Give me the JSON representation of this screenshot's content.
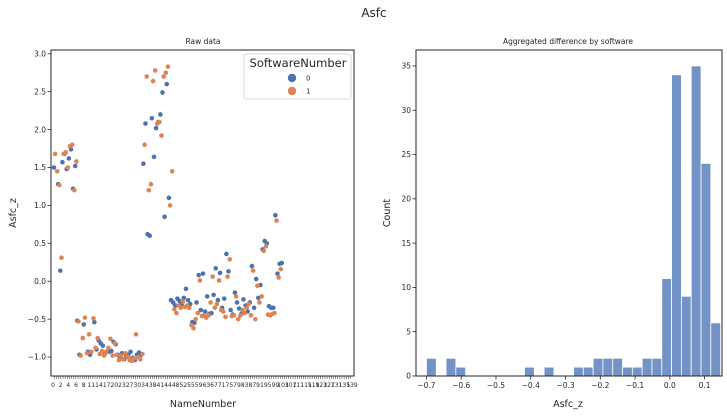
{
  "figure": {
    "suptitle": "Asfc"
  },
  "colors": {
    "software0": "#4c72b0",
    "software1": "#dd8452",
    "hist": "#7393c6",
    "axis": "#262626"
  },
  "chart_data": [
    {
      "type": "scatter",
      "title": "Raw data",
      "xlabel": "NameNumber",
      "ylabel": "Asfc_z",
      "x_categorical": true,
      "n_categories": 140,
      "ylim": [
        -1.25,
        3.05
      ],
      "yticks": [
        -1.0,
        -0.5,
        0.0,
        0.5,
        1.0,
        1.5,
        2.0,
        2.5,
        3.0
      ],
      "ytick_labels": [
        "−1.0",
        "−0.5",
        "0.0",
        "0.5",
        "1.0",
        "1.5",
        "2.0",
        "2.5",
        "3.0"
      ],
      "xtick_labels_visible": [
        "0",
        "2",
        "4",
        "6",
        "8",
        "11",
        "14",
        "17",
        "20",
        "23",
        "27",
        "30",
        "34",
        "38",
        "41",
        "44",
        "48",
        "52",
        "55",
        "59",
        "63",
        "67",
        "71",
        "75",
        "79",
        "83",
        "87",
        "91",
        "95",
        "99",
        "103",
        "107",
        "111",
        "115",
        "119",
        "123",
        "127",
        "131",
        "135",
        "139"
      ],
      "grid": false,
      "legend": {
        "title": "SoftwareNumber",
        "placement": "upper-right",
        "entries": [
          "0",
          "1"
        ]
      },
      "series": [
        {
          "name": "0",
          "points": [
            [
              0,
              1.5
            ],
            [
              2,
              1.28
            ],
            [
              3,
              0.14
            ],
            [
              4,
              1.57
            ],
            [
              5,
              1.68
            ],
            [
              6,
              1.48
            ],
            [
              7,
              1.62
            ],
            [
              8,
              1.74
            ],
            [
              9,
              1.22
            ],
            [
              10,
              1.52
            ],
            [
              11,
              -0.52
            ],
            [
              12,
              -0.97
            ],
            [
              14,
              -0.57
            ],
            [
              16,
              -0.93
            ],
            [
              17,
              -0.97
            ],
            [
              19,
              -0.54
            ],
            [
              20,
              -0.9
            ],
            [
              21,
              -0.78
            ],
            [
              22,
              -0.82
            ],
            [
              23,
              -0.85
            ],
            [
              24,
              -0.95
            ],
            [
              26,
              -0.93
            ],
            [
              27,
              -0.92
            ],
            [
              28,
              -0.8
            ],
            [
              29,
              -0.83
            ],
            [
              30,
              -0.97
            ],
            [
              31,
              -1.02
            ],
            [
              32,
              -0.95
            ],
            [
              33,
              -1.03
            ],
            [
              34,
              -0.98
            ],
            [
              35,
              -0.97
            ],
            [
              36,
              -0.93
            ],
            [
              37,
              -1.01
            ],
            [
              38,
              -1.04
            ],
            [
              39,
              -0.97
            ],
            [
              40,
              -0.94
            ],
            [
              41,
              -0.97
            ],
            [
              42,
              1.55
            ],
            [
              43,
              2.08
            ],
            [
              44,
              0.62
            ],
            [
              45,
              0.6
            ],
            [
              46,
              2.15
            ],
            [
              47,
              1.64
            ],
            [
              48,
              2.02
            ],
            [
              49,
              2.1
            ],
            [
              50,
              2.2
            ],
            [
              51,
              2.49
            ],
            [
              52,
              0.85
            ],
            [
              53,
              2.6
            ],
            [
              54,
              1.1
            ],
            [
              55,
              -0.25
            ],
            [
              56,
              -0.28
            ],
            [
              57,
              -0.32
            ],
            [
              58,
              -0.23
            ],
            [
              59,
              -0.26
            ],
            [
              60,
              -0.3
            ],
            [
              61,
              -0.22
            ],
            [
              62,
              -0.1
            ],
            [
              63,
              -0.25
            ],
            [
              64,
              -0.3
            ],
            [
              65,
              -0.54
            ],
            [
              66,
              -0.55
            ],
            [
              67,
              -0.28
            ],
            [
              68,
              0.08
            ],
            [
              69,
              -0.38
            ],
            [
              70,
              0.1
            ],
            [
              71,
              -0.4
            ],
            [
              72,
              -0.2
            ],
            [
              73,
              -0.43
            ],
            [
              74,
              -0.42
            ],
            [
              75,
              -0.18
            ],
            [
              76,
              0.17
            ],
            [
              77,
              -0.25
            ],
            [
              78,
              0.11
            ],
            [
              79,
              -0.35
            ],
            [
              80,
              -0.23
            ],
            [
              81,
              0.36
            ],
            [
              82,
              0.13
            ],
            [
              83,
              -0.38
            ],
            [
              84,
              -0.44
            ],
            [
              85,
              -0.15
            ],
            [
              86,
              -0.28
            ],
            [
              87,
              -0.36
            ],
            [
              88,
              -0.43
            ],
            [
              89,
              -0.24
            ],
            [
              90,
              -0.32
            ],
            [
              91,
              -0.4
            ],
            [
              92,
              -0.28
            ],
            [
              93,
              0.2
            ],
            [
              94,
              -0.35
            ],
            [
              95,
              0.03
            ],
            [
              96,
              -0.22
            ],
            [
              97,
              -0.05
            ],
            [
              98,
              0.42
            ],
            [
              99,
              0.53
            ],
            [
              100,
              0.5
            ],
            [
              101,
              -0.33
            ],
            [
              102,
              -0.35
            ],
            [
              103,
              -0.35
            ],
            [
              104,
              0.87
            ],
            [
              105,
              0.1
            ],
            [
              106,
              0.23
            ],
            [
              107,
              0.24
            ]
          ]
        },
        {
          "name": "1",
          "points": [
            [
              0,
              1.68
            ],
            [
              1,
              1.45
            ],
            [
              2,
              1.27
            ],
            [
              3,
              0.31
            ],
            [
              4,
              1.68
            ],
            [
              5,
              1.7
            ],
            [
              6,
              1.5
            ],
            [
              7,
              1.78
            ],
            [
              8,
              1.8
            ],
            [
              9,
              1.2
            ],
            [
              10,
              1.58
            ],
            [
              11,
              -0.53
            ],
            [
              12,
              -0.98
            ],
            [
              13,
              -0.75
            ],
            [
              14,
              -0.48
            ],
            [
              15,
              -0.95
            ],
            [
              16,
              -0.7
            ],
            [
              17,
              -0.93
            ],
            [
              18,
              -0.49
            ],
            [
              19,
              -0.88
            ],
            [
              20,
              -0.75
            ],
            [
              21,
              -0.96
            ],
            [
              22,
              -0.92
            ],
            [
              23,
              -0.98
            ],
            [
              24,
              -0.93
            ],
            [
              25,
              -0.88
            ],
            [
              26,
              -0.76
            ],
            [
              27,
              -0.98
            ],
            [
              28,
              -0.82
            ],
            [
              29,
              -0.97
            ],
            [
              30,
              -1.04
            ],
            [
              31,
              -0.98
            ],
            [
              32,
              -1.03
            ],
            [
              33,
              -0.95
            ],
            [
              34,
              -1.0
            ],
            [
              35,
              -1.04
            ],
            [
              36,
              -1.05
            ],
            [
              37,
              -1.02
            ],
            [
              38,
              -0.7
            ],
            [
              39,
              -1.0
            ],
            [
              40,
              -1.03
            ],
            [
              41,
              -0.96
            ],
            [
              42,
              1.8
            ],
            [
              43,
              2.7
            ],
            [
              44,
              1.2
            ],
            [
              45,
              1.28
            ],
            [
              46,
              2.64
            ],
            [
              47,
              2.78
            ],
            [
              48,
              2.08
            ],
            [
              49,
              2.1
            ],
            [
              50,
              1.92
            ],
            [
              51,
              2.7
            ],
            [
              52,
              2.75
            ],
            [
              53,
              2.83
            ],
            [
              54,
              1.0
            ],
            [
              55,
              1.45
            ],
            [
              56,
              -0.37
            ],
            [
              57,
              -0.42
            ],
            [
              58,
              -0.32
            ],
            [
              59,
              -0.35
            ],
            [
              60,
              -0.27
            ],
            [
              61,
              -0.34
            ],
            [
              62,
              -0.32
            ],
            [
              63,
              -0.35
            ],
            [
              64,
              -0.58
            ],
            [
              65,
              -0.62
            ],
            [
              66,
              -0.5
            ],
            [
              67,
              -0.42
            ],
            [
              68,
              0.01
            ],
            [
              69,
              -0.46
            ],
            [
              70,
              -0.45
            ],
            [
              71,
              -0.48
            ],
            [
              72,
              -0.45
            ],
            [
              73,
              -0.28
            ],
            [
              74,
              0.06
            ],
            [
              75,
              -0.35
            ],
            [
              76,
              -0.3
            ],
            [
              77,
              0.01
            ],
            [
              78,
              -0.38
            ],
            [
              79,
              -0.4
            ],
            [
              80,
              -0.47
            ],
            [
              81,
              0.06
            ],
            [
              82,
              0.29
            ],
            [
              83,
              -0.46
            ],
            [
              84,
              -0.45
            ],
            [
              85,
              -0.2
            ],
            [
              86,
              -0.5
            ],
            [
              87,
              -0.45
            ],
            [
              88,
              -0.38
            ],
            [
              89,
              -0.42
            ],
            [
              90,
              -0.35
            ],
            [
              91,
              -0.3
            ],
            [
              92,
              -0.45
            ],
            [
              93,
              0.14
            ],
            [
              94,
              -0.5
            ],
            [
              95,
              -0.06
            ],
            [
              96,
              -0.28
            ],
            [
              97,
              -0.2
            ],
            [
              98,
              0.4
            ],
            [
              99,
              0.46
            ],
            [
              100,
              -0.44
            ],
            [
              101,
              -0.45
            ],
            [
              102,
              -0.43
            ],
            [
              103,
              -0.42
            ],
            [
              104,
              0.8
            ],
            [
              105,
              0.05
            ],
            [
              106,
              0.16
            ]
          ]
        }
      ]
    },
    {
      "type": "bar",
      "subtype": "histogram",
      "title": "Aggregated difference by software",
      "xlabel": "Asfc_z",
      "ylabel": "Count",
      "xlim": [
        -0.73,
        0.15
      ],
      "ylim": [
        0,
        36.8
      ],
      "xticks": [
        -0.7,
        -0.6,
        -0.5,
        -0.4,
        -0.3,
        -0.2,
        -0.1,
        0.0,
        0.1
      ],
      "xtick_labels": [
        "−0.7",
        "−0.6",
        "−0.5",
        "−0.4",
        "−0.3",
        "−0.2",
        "−0.1",
        "0.0",
        "0.1"
      ],
      "yticks": [
        0,
        5,
        10,
        15,
        20,
        25,
        30,
        35
      ],
      "ytick_labels": [
        "0",
        "5",
        "10",
        "15",
        "20",
        "25",
        "30",
        "35"
      ],
      "grid": false,
      "bin_start": -0.7,
      "bin_width": 0.0282,
      "counts": [
        2,
        0,
        2,
        1,
        0,
        0,
        0,
        0,
        0,
        0,
        1,
        0,
        1,
        0,
        0,
        1,
        1,
        2,
        2,
        2,
        1,
        1,
        2,
        2,
        11,
        34,
        9,
        35,
        24,
        6
      ]
    }
  ]
}
